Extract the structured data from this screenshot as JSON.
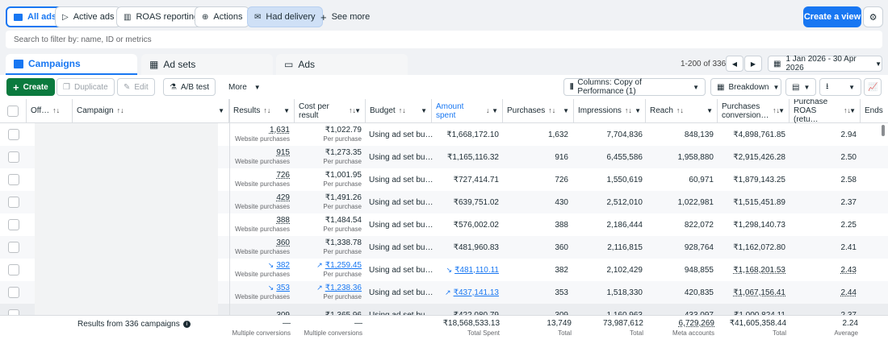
{
  "top_tabs": [
    {
      "label": "All ads",
      "icon": "folder-icon"
    },
    {
      "label": "Active ads",
      "icon": "play-icon"
    },
    {
      "label": "ROAS reporting",
      "icon": "building-icon"
    },
    {
      "label": "Actions",
      "icon": "actions-icon"
    },
    {
      "label": "Had delivery",
      "icon": "delivery-icon"
    },
    {
      "label": "See more",
      "icon": "plus-icon"
    }
  ],
  "create_view_label": "Create a view",
  "search_placeholder": "Search to filter by: name, ID or metrics",
  "level_tabs": [
    {
      "label": "Campaigns",
      "icon": "campaign-icon"
    },
    {
      "label": "Ad sets",
      "icon": "grid-icon"
    },
    {
      "label": "Ads",
      "icon": "ad-icon"
    }
  ],
  "pagination": "1-200 of 336",
  "date_range": "1 Jan 2026 - 30 Apr 2026",
  "toolbar": {
    "create": "Create",
    "duplicate": "Duplicate",
    "edit": "Edit",
    "ab_test": "A/B test",
    "more": "More",
    "columns": "Columns: Copy of Performance (1)",
    "breakdown": "Breakdown"
  },
  "columns": [
    {
      "label": "Off…"
    },
    {
      "label": "Campaign"
    },
    {
      "label": "Results"
    },
    {
      "label": "Cost per result"
    },
    {
      "label": "Budget"
    },
    {
      "label": "Amount spent"
    },
    {
      "label": "Purchases"
    },
    {
      "label": "Impressions"
    },
    {
      "label": "Reach"
    },
    {
      "label": "Purchases conversion…"
    },
    {
      "label": "Purchase ROAS (retu…"
    },
    {
      "label": "Ends"
    }
  ],
  "rows": [
    {
      "results": "1,631",
      "results_sub": "Website purchases",
      "cpr": "₹1,022.79",
      "cpr_sub": "Per purchase",
      "budget": "Using ad set bu…",
      "spent": "₹1,668,172.10",
      "purchases": "1,632",
      "impressions": "7,704,836",
      "reach": "848,139",
      "conv": "₹4,898,761.85",
      "roas": "2.94"
    },
    {
      "results": "915",
      "results_sub": "Website purchases",
      "cpr": "₹1,273.35",
      "cpr_sub": "Per purchase",
      "budget": "Using ad set bu…",
      "spent": "₹1,165,116.32",
      "purchases": "916",
      "impressions": "6,455,586",
      "reach": "1,958,880",
      "conv": "₹2,915,426.28",
      "roas": "2.50"
    },
    {
      "results": "726",
      "results_sub": "Website purchases",
      "cpr": "₹1,001.95",
      "cpr_sub": "Per purchase",
      "budget": "Using ad set bu…",
      "spent": "₹727,414.71",
      "purchases": "726",
      "impressions": "1,550,619",
      "reach": "60,971",
      "conv": "₹1,879,143.25",
      "roas": "2.58"
    },
    {
      "results": "429",
      "results_sub": "Website purchases",
      "cpr": "₹1,491.26",
      "cpr_sub": "Per purchase",
      "budget": "Using ad set bu…",
      "spent": "₹639,751.02",
      "purchases": "430",
      "impressions": "2,512,010",
      "reach": "1,022,981",
      "conv": "₹1,515,451.89",
      "roas": "2.37"
    },
    {
      "results": "388",
      "results_sub": "Website purchases",
      "cpr": "₹1,484.54",
      "cpr_sub": "Per purchase",
      "budget": "Using ad set bu…",
      "spent": "₹576,002.02",
      "purchases": "388",
      "impressions": "2,186,444",
      "reach": "822,072",
      "conv": "₹1,298,140.73",
      "roas": "2.25"
    },
    {
      "results": "360",
      "results_sub": "Website purchases",
      "cpr": "₹1,338.78",
      "cpr_sub": "Per purchase",
      "budget": "Using ad set bu…",
      "spent": "₹481,960.83",
      "purchases": "360",
      "impressions": "2,116,815",
      "reach": "928,764",
      "conv": "₹1,162,072.80",
      "roas": "2.41"
    },
    {
      "results": "382",
      "results_sub": "Website purchases",
      "cpr": "₹1,259.45",
      "cpr_sub": "Per purchase",
      "budget": "Using ad set bu…",
      "spent": "₹481,110.11",
      "purchases": "382",
      "impressions": "2,102,429",
      "reach": "948,855",
      "conv": "₹1,168,201.53",
      "roas": "2.43"
    },
    {
      "results": "353",
      "results_sub": "Website purchases",
      "cpr": "₹1,238.36",
      "cpr_sub": "Per purchase",
      "budget": "Using ad set bu…",
      "spent": "₹437,141.13",
      "purchases": "353",
      "impressions": "1,518,330",
      "reach": "420,835",
      "conv": "₹1,067,156.41",
      "roas": "2.44"
    },
    {
      "results": "309",
      "results_sub": "",
      "cpr": "₹1,365.96",
      "cpr_sub": "",
      "budget": "Using ad set bu…",
      "spent": "₹422,080.79",
      "purchases": "309",
      "impressions": "1,160,963",
      "reach": "433,097",
      "conv": "₹1,000,824.11",
      "roas": "2.37"
    }
  ],
  "footer": {
    "label": "Results from 336 campaigns",
    "results": "—",
    "results_sub": "Multiple conversions",
    "cpr": "—",
    "cpr_sub": "Multiple conversions",
    "spent": "₹18,568,533.13",
    "spent_sub": "Total Spent",
    "purchases": "13,749",
    "purchases_sub": "Total",
    "impressions": "73,987,612",
    "impressions_sub": "Total",
    "reach": "6,729,269",
    "reach_sub": "Meta accounts",
    "conv": "₹41,605,358.44",
    "conv_sub": "Total",
    "roas": "2.24",
    "roas_sub": "Average"
  },
  "colors": {
    "accent": "#1877f2",
    "create_green": "#0b7a3e"
  }
}
